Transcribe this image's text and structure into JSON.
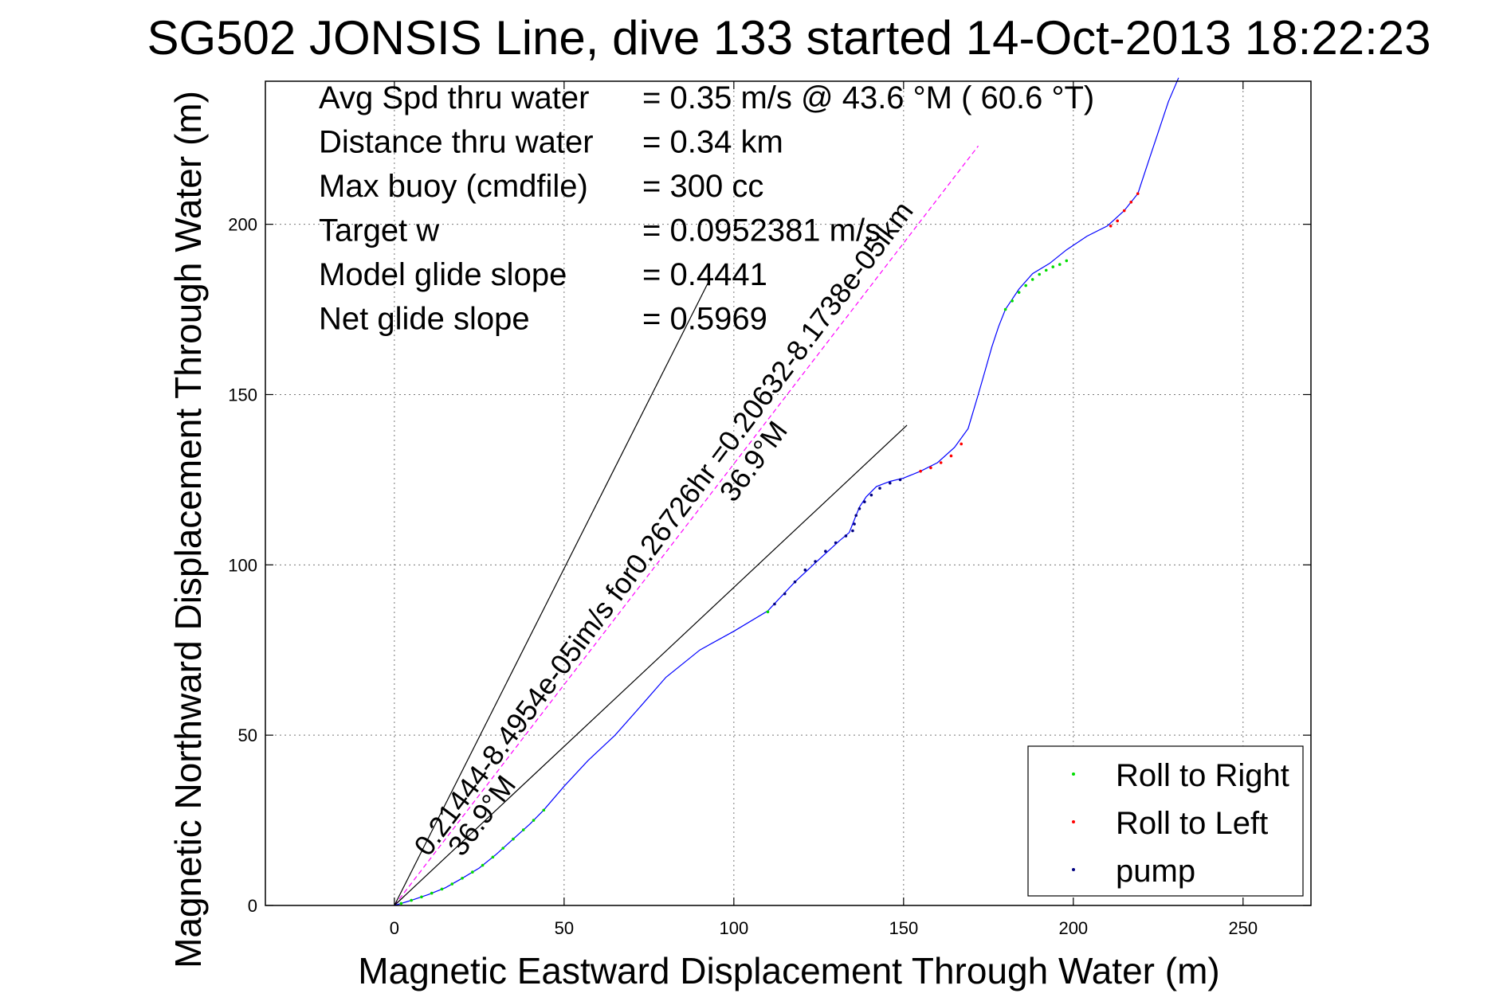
{
  "chart_data": {
    "type": "scatter",
    "title": "SG502 JONSIS Line, dive 133 started 14-Oct-2013 18:22:23",
    "xlabel": "Magnetic Eastward Displacement Through Water (m)",
    "ylabel": "Magnetic Northward Displacement Through Water (m)",
    "xlim": [
      -38,
      270
    ],
    "ylim": [
      0,
      242
    ],
    "xticks": [
      0,
      50,
      100,
      150,
      200,
      250
    ],
    "yticks": [
      0,
      50,
      100,
      150,
      200
    ],
    "grid": true,
    "legend_position": "bottom-right",
    "stats": [
      {
        "label": "Avg Spd thru water",
        "value": "=  0.35 m/s @  43.6 °M ( 60.6 °T)"
      },
      {
        "label": "Distance thru water",
        "value": "=  0.34 km"
      },
      {
        "label": "Max buoy (cmdfile)",
        "value": "= 300 cc"
      },
      {
        "label": "Target w",
        "value": "= 0.0952381 m/s"
      },
      {
        "label": "Model glide slope",
        "value": "= 0.4441"
      },
      {
        "label": "Net glide slope",
        "value": "= 0.5969"
      }
    ],
    "annotations": [
      {
        "text": "0.21444-8.4954e-05im/s for0.26726hr =0.20632-8.1738e-05ikm",
        "x": 10,
        "y": 14,
        "angle_deg": 36.9
      },
      {
        "text": "36.9°M",
        "x": 20,
        "y": 14,
        "angle_deg": 36.9
      },
      {
        "text": "36.9°M",
        "x": 100,
        "y": 118,
        "angle_deg": 36.9
      }
    ],
    "reference_lines": [
      {
        "name": "net-course",
        "color": "#ff00ff",
        "dash": true,
        "x": [
          0,
          172
        ],
        "y": [
          0,
          223
        ]
      },
      {
        "name": "heading-bound-upper",
        "color": "#000000",
        "x": [
          0,
          93
        ],
        "y": [
          0,
          184
        ]
      },
      {
        "name": "heading-bound-lower",
        "color": "#000000",
        "x": [
          0,
          151
        ],
        "y": [
          0,
          141
        ]
      }
    ],
    "track": {
      "color": "#0000ff",
      "x": [
        0,
        5,
        10,
        15,
        20,
        25,
        30,
        35,
        40,
        44,
        50,
        57,
        65,
        73,
        80,
        90,
        100,
        110,
        118,
        125,
        131,
        134,
        135,
        136,
        137,
        139,
        142,
        146,
        150,
        155,
        160,
        165,
        169,
        172,
        174,
        176,
        178,
        180,
        184,
        188,
        193,
        198,
        204,
        210,
        215,
        219,
        222,
        225,
        228,
        231
      ],
      "y": [
        0,
        1.5,
        3.2,
        5.2,
        8,
        11,
        15,
        19.5,
        24,
        28,
        35,
        42.5,
        50,
        59,
        67,
        75,
        80.5,
        86.5,
        95,
        101.5,
        107,
        109.5,
        112,
        114.5,
        117,
        120,
        123,
        124.5,
        125.5,
        127.5,
        130,
        134.5,
        140,
        150,
        157,
        164,
        170,
        175,
        181,
        185.5,
        188.5,
        192.5,
        196.5,
        199.5,
        204,
        209,
        218,
        227,
        236,
        243
      ]
    },
    "series": [
      {
        "name": "Roll to Right",
        "color": "#00dd00",
        "x": [
          2,
          5,
          8,
          11,
          14,
          17,
          20,
          23,
          26,
          29,
          32,
          35,
          38,
          41,
          44,
          110,
          180,
          182,
          184,
          186,
          188,
          190,
          192,
          194,
          196,
          198
        ],
        "y": [
          0.6,
          1.5,
          2.5,
          3.6,
          4.8,
          6.3,
          8,
          9.8,
          11.8,
          14.2,
          16.8,
          19.5,
          22.2,
          25,
          28,
          86.2,
          175,
          177.5,
          180,
          182,
          183.8,
          185.3,
          186.5,
          187.5,
          188.2,
          189.3
        ]
      },
      {
        "name": "Roll to Left",
        "color": "#ff0000",
        "x": [
          155,
          158,
          161,
          164,
          167,
          211,
          213,
          215,
          217,
          219
        ],
        "y": [
          127.5,
          128.5,
          130,
          132,
          135.5,
          199.5,
          201,
          204,
          206.5,
          209
        ]
      },
      {
        "name": "pump",
        "color": "#000080",
        "x": [
          112,
          115,
          118,
          121,
          124,
          127,
          130,
          133,
          135,
          135.5,
          136,
          137,
          138.5,
          140.5,
          143,
          146,
          149
        ],
        "y": [
          88.5,
          91.5,
          95,
          98.5,
          101,
          104,
          106.5,
          108.5,
          110,
          112,
          114.5,
          116.5,
          118.5,
          120.5,
          122.5,
          124,
          125
        ]
      }
    ]
  }
}
